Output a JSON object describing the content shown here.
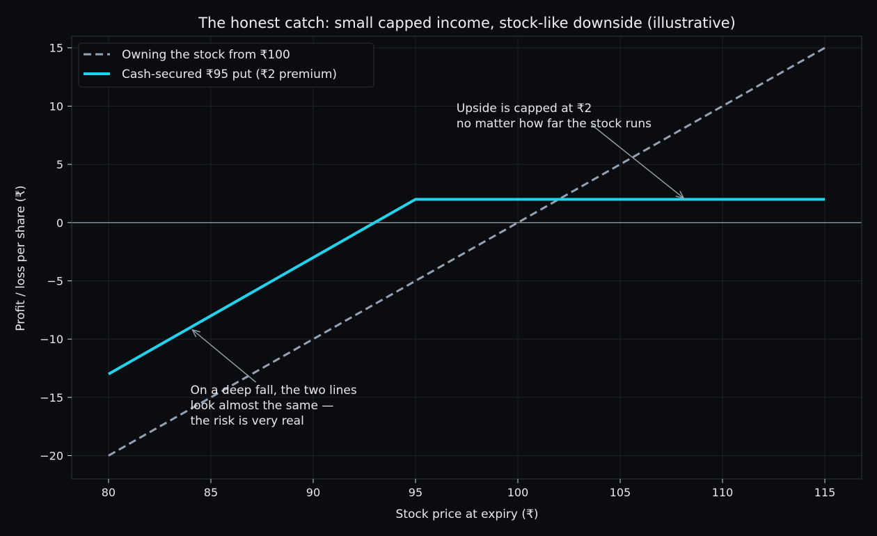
{
  "chart_data": {
    "type": "line",
    "title": "The honest catch: small capped income, stock-like downside (illustrative)",
    "xlabel": "Stock price at expiry (₹)",
    "ylabel": "Profit / loss per share (₹)",
    "xlim": [
      78.2,
      116.8
    ],
    "ylim": [
      -22,
      16
    ],
    "xticks": [
      80,
      85,
      90,
      95,
      100,
      105,
      110,
      115
    ],
    "yticks": [
      15,
      10,
      5,
      0,
      -5,
      -10,
      -15,
      -20
    ],
    "xtick_labels": [
      "80",
      "85",
      "90",
      "95",
      "100",
      "105",
      "110",
      "115"
    ],
    "ytick_labels": [
      "15",
      "10",
      "5",
      "0",
      "−5",
      "−10",
      "−15",
      "−20"
    ],
    "grid": true,
    "legend_position": "top-left",
    "colors": {
      "background": "#0b0c10",
      "frame": "#2a3138",
      "grid": "#1c2329",
      "zero_line": "#8f9ba8",
      "stock_line": "#94a3b3",
      "put_line": "#22d3ee",
      "annotation_arrow": "#9aa4ad"
    },
    "series": [
      {
        "name": "Owning the stock from ₹100",
        "style": "dashed",
        "color": "#94a3b3",
        "x": [
          80,
          115
        ],
        "y": [
          -20,
          15
        ]
      },
      {
        "name": "Cash-secured ₹95 put (₹2 premium)",
        "style": "solid",
        "color": "#22d3ee",
        "x": [
          80,
          95,
          115
        ],
        "y": [
          -13,
          2,
          2
        ]
      }
    ],
    "annotations": [
      {
        "lines": [
          "Upside is capped at ₹2",
          "no matter how far the stock runs"
        ],
        "text_at": [
          97,
          9.5
        ],
        "arrow_from": [
          103.6,
          8.4
        ],
        "arrow_to": [
          108.1,
          2.1
        ]
      },
      {
        "lines": [
          "On a deep fall, the two lines",
          "look almost the same —",
          "the risk is very real"
        ],
        "text_at": [
          84,
          -14.7
        ],
        "arrow_from": [
          87.2,
          -13.7
        ],
        "arrow_to": [
          84.1,
          -9.2
        ]
      }
    ]
  }
}
